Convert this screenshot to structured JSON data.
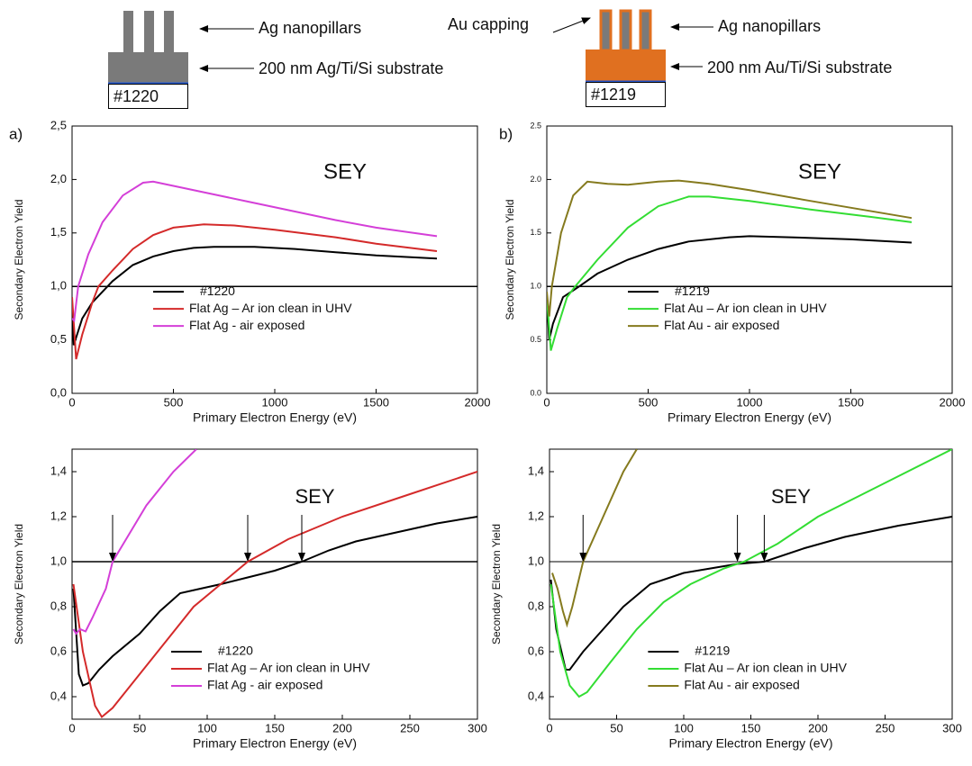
{
  "schematics": [
    {
      "sample": "#1220",
      "labels": [
        "Ag nanopillars",
        "200 nm Ag/Ti/Si substrate"
      ]
    },
    {
      "sample": "#1219",
      "labels": [
        "Au capping",
        "Ag nanopillars",
        "200 nm Au/Ti/Si substrate"
      ]
    }
  ],
  "chart_data": [
    {
      "type": "line",
      "panel_label": "a)",
      "annotation": "SEY",
      "xlabel": "Primary Electron Energy (eV)",
      "ylabel": "Secondary Electron Yield",
      "xlim": [
        0,
        2000
      ],
      "xticks": [
        0,
        500,
        1000,
        1500,
        2000
      ],
      "ylim": [
        0,
        2.5
      ],
      "yticks": [
        {
          "value": 0,
          "label": "0,0"
        },
        {
          "value": 0.5,
          "label": "0,5"
        },
        {
          "value": 1,
          "label": "1,0"
        },
        {
          "value": 1.5,
          "label": "1,5"
        },
        {
          "value": 2,
          "label": "2,0"
        },
        {
          "value": 2.5,
          "label": "2,5"
        }
      ],
      "reference_line": 1,
      "legend": "lower center",
      "series": [
        {
          "name": "#1220",
          "color": "#000000",
          "x": [
            0,
            8,
            50,
            100,
            150,
            200,
            300,
            400,
            500,
            600,
            700,
            900,
            1100,
            1300,
            1500,
            1800
          ],
          "values": [
            0.75,
            0.45,
            0.7,
            0.85,
            0.95,
            1.05,
            1.2,
            1.28,
            1.33,
            1.36,
            1.37,
            1.37,
            1.35,
            1.32,
            1.29,
            1.26
          ]
        },
        {
          "name": "Flat Ag – Ar ion clean in UHV",
          "color": "#d42a2a",
          "x": [
            0,
            20,
            50,
            100,
            130,
            200,
            300,
            400,
            500,
            650,
            800,
            1000,
            1300,
            1500,
            1800
          ],
          "values": [
            0.9,
            0.32,
            0.55,
            0.85,
            1.0,
            1.15,
            1.35,
            1.48,
            1.55,
            1.58,
            1.57,
            1.53,
            1.46,
            1.4,
            1.33
          ]
        },
        {
          "name": "Flat Ag - air exposed",
          "color": "#d43fd8",
          "x": [
            0,
            10,
            30,
            80,
            150,
            250,
            350,
            400,
            500,
            700,
            900,
            1100,
            1300,
            1500,
            1800
          ],
          "values": [
            0.7,
            0.68,
            1.0,
            1.3,
            1.6,
            1.85,
            1.97,
            1.98,
            1.94,
            1.86,
            1.78,
            1.7,
            1.62,
            1.55,
            1.47
          ]
        }
      ]
    },
    {
      "type": "line",
      "panel_label": "b)",
      "annotation": "SEY",
      "xlabel": "Primary Electron Energy (eV)",
      "ylabel": "Secondary Electron Yield",
      "xlim": [
        0,
        2000
      ],
      "xticks": [
        0,
        500,
        1000,
        1500,
        2000
      ],
      "ylim": [
        0,
        2.5
      ],
      "yticks": [
        {
          "value": 0,
          "label": "0.0"
        },
        0.5,
        {
          "value": 1,
          "label": "1.0"
        },
        1.5,
        {
          "value": 2,
          "label": "2.0"
        },
        2.5
      ],
      "reference_line": 1,
      "legend": "lower center",
      "series": [
        {
          "name": "#1219",
          "color": "#000000",
          "x": [
            0,
            12,
            30,
            80,
            160,
            250,
            400,
            550,
            700,
            900,
            1000,
            1200,
            1500,
            1800
          ],
          "values": [
            0.9,
            0.5,
            0.65,
            0.9,
            1.0,
            1.12,
            1.25,
            1.35,
            1.42,
            1.46,
            1.47,
            1.46,
            1.44,
            1.41
          ]
        },
        {
          "name": "Flat Au – Ar ion clean in UHV",
          "color": "#33dd33",
          "x": [
            0,
            20,
            50,
            100,
            140,
            250,
            400,
            550,
            700,
            800,
            1000,
            1300,
            1600,
            1800
          ],
          "values": [
            0.9,
            0.4,
            0.6,
            0.9,
            1.0,
            1.25,
            1.55,
            1.75,
            1.84,
            1.84,
            1.8,
            1.72,
            1.65,
            1.6
          ]
        },
        {
          "name": "Flat Au - air exposed",
          "color": "#857a1e",
          "x": [
            0,
            12,
            25,
            70,
            130,
            200,
            300,
            400,
            550,
            650,
            800,
            1000,
            1300,
            1550,
            1800
          ],
          "values": [
            0.95,
            0.72,
            1.0,
            1.5,
            1.85,
            1.98,
            1.96,
            1.95,
            1.98,
            1.99,
            1.96,
            1.9,
            1.8,
            1.72,
            1.64
          ]
        }
      ]
    },
    {
      "type": "line",
      "annotation": "SEY",
      "xlabel": "Primary Electron Energy (eV)",
      "ylabel": "Secondary Electron Yield",
      "xlim": [
        0,
        300
      ],
      "xticks": [
        0,
        50,
        100,
        150,
        200,
        250,
        300
      ],
      "ylim": [
        0.3,
        1.5
      ],
      "yticks": [
        {
          "value": 0.4,
          "label": "0,4"
        },
        {
          "value": 0.6,
          "label": "0,6"
        },
        {
          "value": 0.8,
          "label": "0,8"
        },
        {
          "value": 1,
          "label": "1,0"
        },
        {
          "value": 1.2,
          "label": "1,2"
        },
        {
          "value": 1.4,
          "label": "1,4"
        }
      ],
      "reference_line": 1,
      "arrows": [
        30,
        130,
        170
      ],
      "legend": "lower center",
      "series": [
        {
          "name": "#1220",
          "color": "#000000",
          "x": [
            1,
            5,
            8,
            12,
            20,
            30,
            50,
            65,
            80,
            95,
            110,
            130,
            150,
            170,
            190,
            210,
            240,
            270,
            300
          ],
          "values": [
            0.88,
            0.5,
            0.45,
            0.46,
            0.52,
            0.58,
            0.68,
            0.78,
            0.86,
            0.88,
            0.9,
            0.93,
            0.96,
            1.0,
            1.05,
            1.09,
            1.13,
            1.17,
            1.2
          ]
        },
        {
          "name": "Flat Ag – Ar ion clean in UHV",
          "color": "#d42a2a",
          "x": [
            1,
            8,
            17,
            22,
            30,
            50,
            70,
            90,
            110,
            130,
            160,
            200,
            250,
            300
          ],
          "values": [
            0.9,
            0.6,
            0.36,
            0.31,
            0.35,
            0.5,
            0.65,
            0.8,
            0.9,
            1.0,
            1.1,
            1.2,
            1.3,
            1.4
          ]
        },
        {
          "name": "Flat Ag - air exposed",
          "color": "#d43fd8",
          "x": [
            1,
            3,
            6,
            10,
            15,
            25,
            30,
            40,
            55,
            75,
            92
          ],
          "values": [
            0.7,
            0.68,
            0.7,
            0.69,
            0.75,
            0.88,
            1.0,
            1.1,
            1.25,
            1.4,
            1.5
          ]
        }
      ]
    },
    {
      "type": "line",
      "annotation": "SEY",
      "xlabel": "Primary Electron Energy (eV)",
      "ylabel": "Secondary Electron Yield",
      "xlim": [
        0,
        300
      ],
      "xticks": [
        0,
        50,
        100,
        150,
        200,
        250,
        300
      ],
      "ylim": [
        0.3,
        1.5
      ],
      "yticks": [
        {
          "value": 0.4,
          "label": "0,4"
        },
        {
          "value": 0.6,
          "label": "0,6"
        },
        {
          "value": 0.8,
          "label": "0,8"
        },
        {
          "value": 1,
          "label": "1,0"
        },
        {
          "value": 1.2,
          "label": "1,2"
        },
        {
          "value": 1.4,
          "label": "1,4"
        }
      ],
      "reference_line": 1,
      "arrows": [
        25,
        140,
        160
      ],
      "legend": "lower center",
      "series": [
        {
          "name": "#1219",
          "color": "#000000",
          "x": [
            1,
            5,
            12,
            15,
            25,
            40,
            55,
            75,
            100,
            120,
            140,
            160,
            190,
            220,
            260,
            300
          ],
          "values": [
            0.92,
            0.7,
            0.52,
            0.52,
            0.6,
            0.7,
            0.8,
            0.9,
            0.95,
            0.97,
            0.99,
            1.0,
            1.06,
            1.11,
            1.16,
            1.2
          ]
        },
        {
          "name": "Flat Au – Ar ion clean in UHV",
          "color": "#33dd33",
          "x": [
            1,
            8,
            15,
            22,
            28,
            45,
            65,
            85,
            105,
            130,
            145,
            170,
            200,
            250,
            300
          ],
          "values": [
            0.9,
            0.6,
            0.45,
            0.4,
            0.42,
            0.55,
            0.7,
            0.82,
            0.9,
            0.97,
            1.0,
            1.08,
            1.2,
            1.35,
            1.5
          ]
        },
        {
          "name": "Flat Au - air exposed",
          "color": "#857a1e",
          "x": [
            2,
            6,
            10,
            13,
            17,
            25,
            40,
            55,
            65
          ],
          "values": [
            0.95,
            0.88,
            0.78,
            0.72,
            0.8,
            1.0,
            1.2,
            1.4,
            1.5
          ]
        }
      ]
    }
  ]
}
